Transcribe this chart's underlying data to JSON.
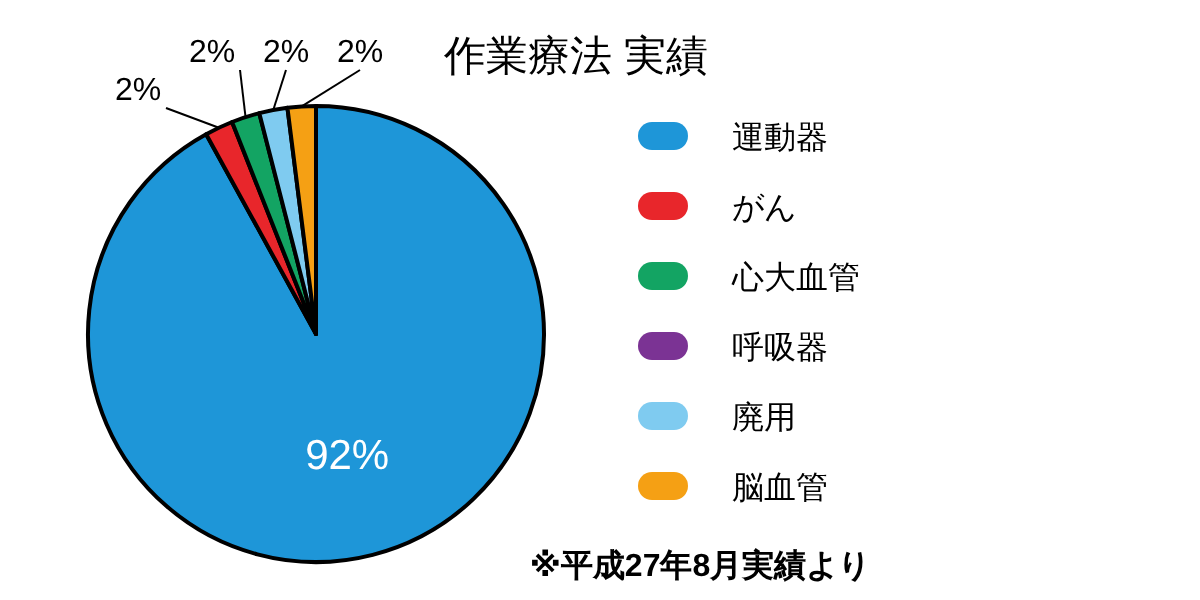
{
  "chart_data": {
    "type": "pie",
    "title": "作業療法 実績",
    "categories": [
      "運動器",
      "がん",
      "心大血管",
      "呼吸器",
      "廃用",
      "脳血管"
    ],
    "values": [
      92,
      2,
      2,
      0,
      2,
      2
    ],
    "colors": [
      "#1e96d8",
      "#e8262b",
      "#13a463",
      "#7b3394",
      "#7fcbf0",
      "#f5a014"
    ],
    "value_labels": [
      "92%",
      "2%",
      "2%",
      null,
      "2%",
      "2%"
    ],
    "legend": "right",
    "annotations": [
      "※平成27年8月実績より"
    ]
  }
}
